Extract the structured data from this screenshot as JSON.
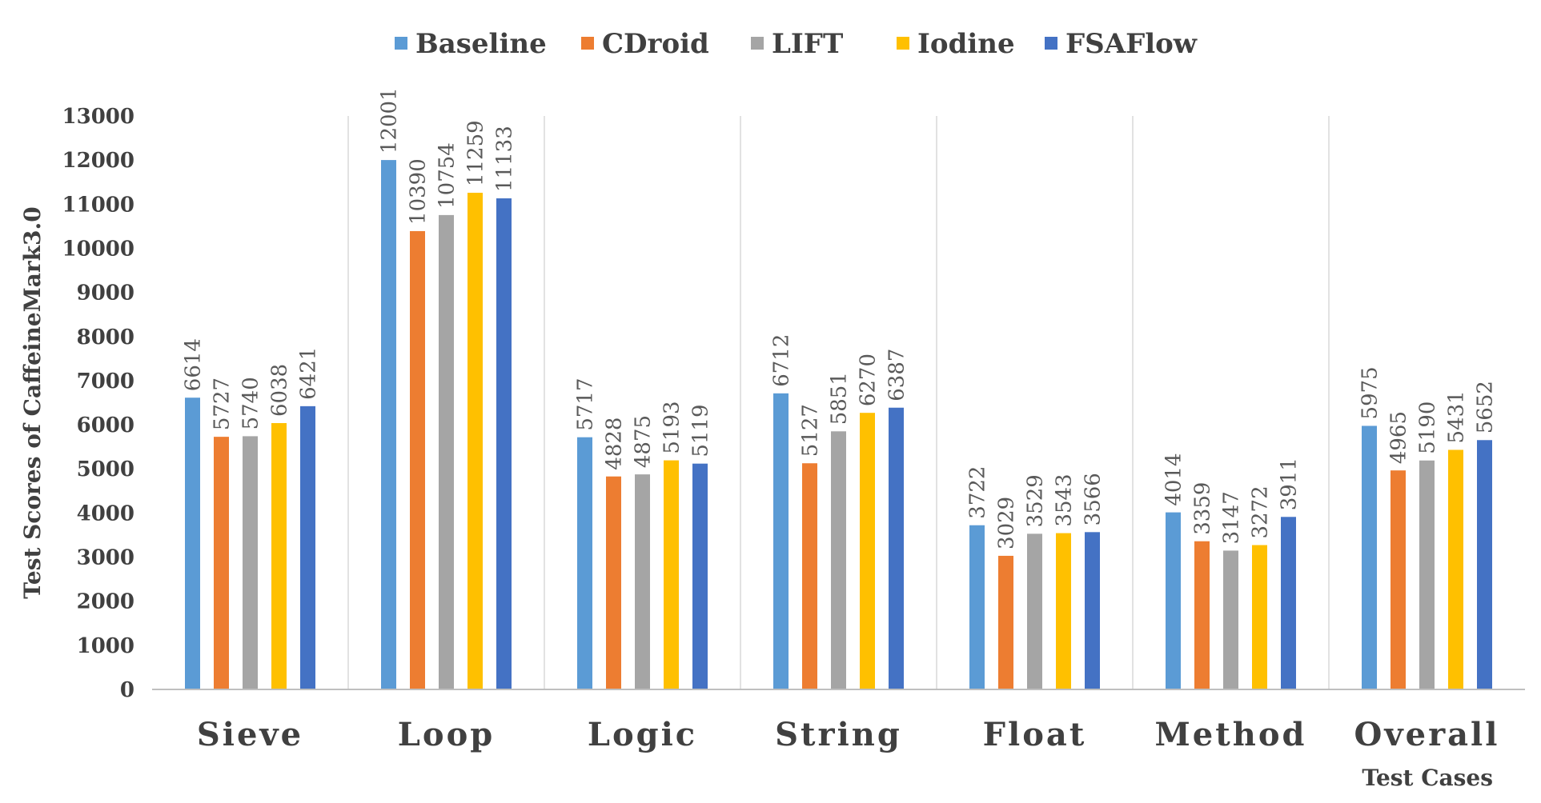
{
  "chart_data": {
    "type": "bar",
    "title": "",
    "xlabel": "Test Cases",
    "ylabel": "Test Scores of CaffeineMark3.0",
    "ylim": [
      0,
      13000
    ],
    "ytick_step": 1000,
    "grid": "vertical separators between categories",
    "legend_position": "top-center",
    "categories": [
      "Sieve",
      "Loop",
      "Logic",
      "String",
      "Float",
      "Method",
      "Overall"
    ],
    "series": [
      {
        "name": "Baseline",
        "color": "#5B9BD5",
        "values": [
          6614,
          12001,
          5717,
          6712,
          3722,
          4014,
          5975
        ]
      },
      {
        "name": "CDroid",
        "color": "#ED7D31",
        "values": [
          5727,
          10390,
          4828,
          5127,
          3029,
          3359,
          4965
        ]
      },
      {
        "name": "LIFT",
        "color": "#A5A5A5",
        "values": [
          5740,
          10754,
          4875,
          5851,
          3529,
          3147,
          5190
        ]
      },
      {
        "name": "Iodine",
        "color": "#FFC000",
        "values": [
          6038,
          11259,
          5193,
          6270,
          3543,
          3272,
          5431
        ]
      },
      {
        "name": "FSAFlow",
        "color": "#4472C4",
        "values": [
          6421,
          11133,
          5119,
          6387,
          3566,
          3911,
          5652
        ]
      }
    ]
  }
}
